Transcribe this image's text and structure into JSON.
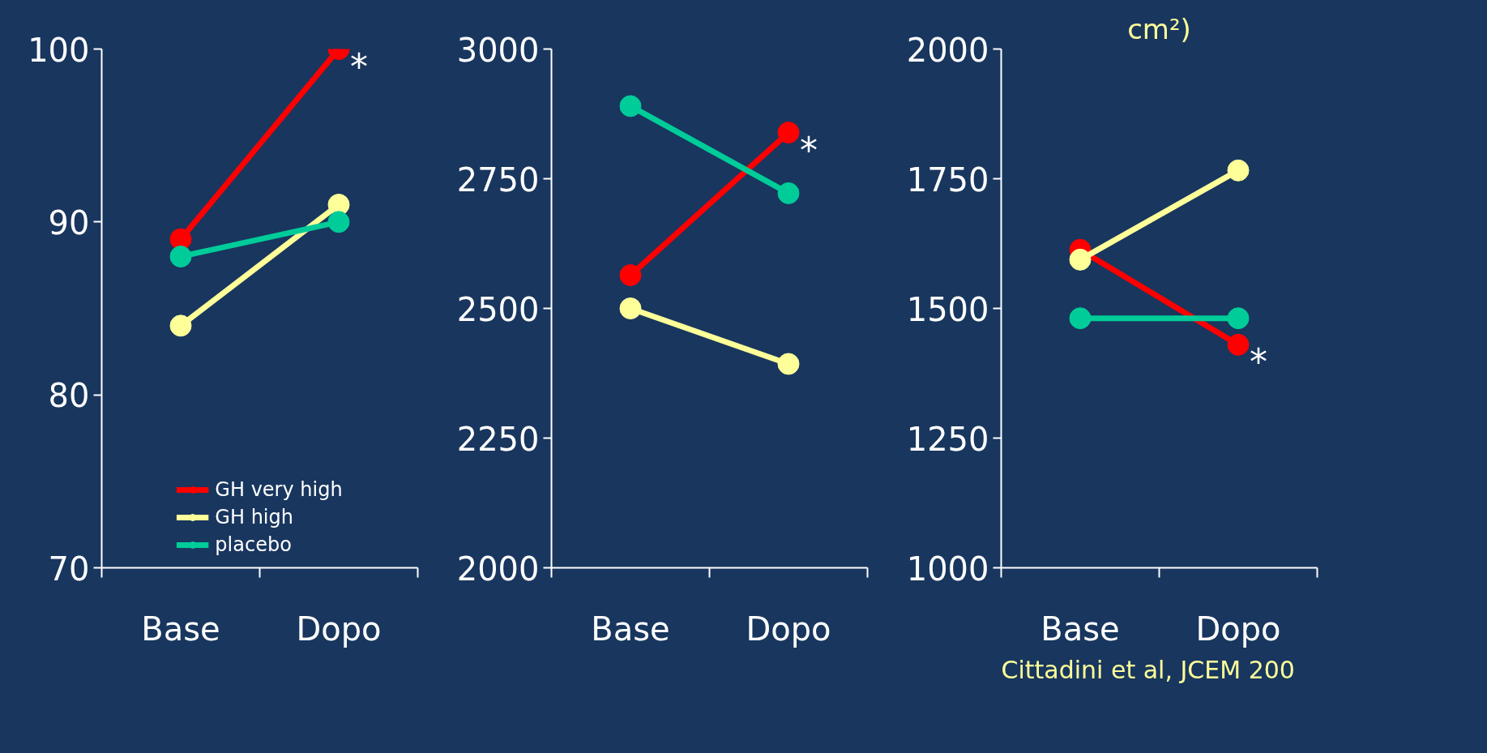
{
  "chart_data": [
    {
      "type": "line",
      "categories": [
        "Base",
        "Dopo"
      ],
      "ylim": [
        70,
        100
      ],
      "yticks": [
        70,
        80,
        90,
        100
      ],
      "marker": "circle",
      "legend": "bottom",
      "grid": false,
      "series": [
        {
          "name": "GH very high",
          "color": "#ff0000",
          "values": [
            89,
            100
          ]
        },
        {
          "name": "GH high",
          "color": "#ffff99",
          "values": [
            84,
            91
          ]
        },
        {
          "name": "placebo",
          "color": "#00cc99",
          "values": [
            88,
            90
          ]
        }
      ],
      "annotations": [
        {
          "text": "*",
          "x": "Dopo",
          "y": 100
        }
      ]
    },
    {
      "type": "line",
      "categories": [
        "Base",
        "Dopo"
      ],
      "ylim": [
        2000,
        3000
      ],
      "yticks": [
        2000,
        2250,
        2500,
        2750,
        3000
      ],
      "marker": "circle",
      "grid": false,
      "series": [
        {
          "color": "#ff0000",
          "values": [
            2564,
            2839
          ]
        },
        {
          "color": "#ffff99",
          "values": [
            2500,
            2393
          ]
        },
        {
          "color": "#00cc99",
          "values": [
            2890,
            2722
          ]
        }
      ],
      "annotations": [
        {
          "text": "*",
          "x": "Dopo",
          "y": 2839
        }
      ]
    },
    {
      "type": "line",
      "title": "cm²)",
      "categories": [
        "Base",
        "Dopo"
      ],
      "ylim": [
        1000,
        2000
      ],
      "yticks": [
        1000,
        1250,
        1500,
        1750,
        2000
      ],
      "marker": "circle",
      "grid": false,
      "series": [
        {
          "color": "#ff0000",
          "values": [
            1613,
            1430
          ]
        },
        {
          "color": "#ffff99",
          "values": [
            1594,
            1766
          ]
        },
        {
          "color": "#00cc99",
          "values": [
            1481,
            1481
          ]
        }
      ],
      "annotations": [
        {
          "text": "*",
          "x": "Dopo",
          "y": 1430
        },
        "Cittadini et al, JCEM 200"
      ]
    }
  ]
}
